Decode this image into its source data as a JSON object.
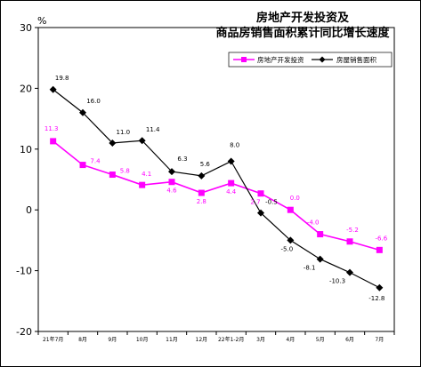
{
  "chart_data": {
    "type": "line",
    "title_line1": "房地产开发投资及",
    "title_line2": "商品房销售面积累计同比增长速度",
    "y_unit": "%",
    "ylim": [
      -20,
      30
    ],
    "yticks": [
      "30",
      "20",
      "10",
      "0",
      "-10",
      "-20"
    ],
    "ytick_values": [
      30,
      20,
      10,
      0,
      -10,
      -20
    ],
    "categories": [
      "21年7月",
      "8月",
      "9月",
      "10月",
      "11月",
      "12月",
      "22年1-2月",
      "3月",
      "4月",
      "5月",
      "6月",
      "7月"
    ],
    "grid": false,
    "legend_position": "top-right",
    "series": [
      {
        "name": "房地产开发投资",
        "color": "#ff00ff",
        "marker": "square",
        "values": [
          11.3,
          7.4,
          5.8,
          4.1,
          4.6,
          2.8,
          4.4,
          2.7,
          0.0,
          -4.0,
          -5.2,
          -6.6
        ],
        "labels": [
          "11.3",
          "7.4",
          "5.8",
          "4.1",
          "4.6",
          "2.8",
          "4.4",
          "2.7",
          "0.0",
          "-4.0",
          "-5.2",
          "-6.6"
        ]
      },
      {
        "name": "房屋销售面积",
        "color": "#000000",
        "marker": "diamond",
        "values": [
          19.8,
          16.0,
          11.0,
          11.4,
          6.3,
          5.6,
          8.0,
          -0.5,
          -5.0,
          -8.1,
          -10.3,
          -12.8
        ],
        "labels": [
          "19.8",
          "16.0",
          "11.0",
          "11.4",
          "6.3",
          "5.6",
          "8.0",
          "-0.5",
          "-5.0",
          "-8.1",
          "-10.3",
          "-12.8"
        ]
      }
    ]
  }
}
